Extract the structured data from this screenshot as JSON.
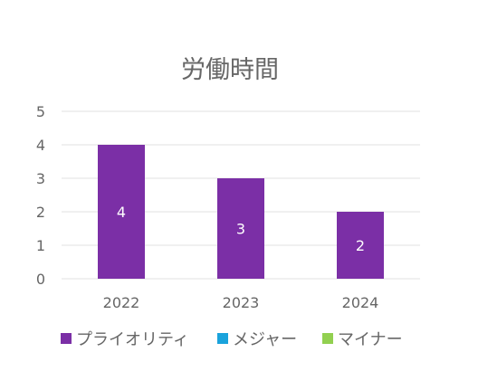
{
  "chart_data": {
    "type": "bar",
    "title": "労働時間",
    "xlabel": "",
    "ylabel": "",
    "categories": [
      "2022",
      "2023",
      "2024"
    ],
    "series": [
      {
        "name": "プライオリティ",
        "color": "#7b2fa6",
        "values": [
          4,
          3,
          2
        ]
      },
      {
        "name": "メジャー",
        "color": "#1aa3dc",
        "values": [
          null,
          null,
          null
        ]
      },
      {
        "name": "マイナー",
        "color": "#92d050",
        "values": [
          null,
          null,
          null
        ]
      }
    ],
    "ylim": [
      0,
      5
    ],
    "yticks": [
      "0",
      "1",
      "2",
      "3",
      "4",
      "5"
    ],
    "grid": true,
    "legend_position": "bottom",
    "data_labels": true
  }
}
